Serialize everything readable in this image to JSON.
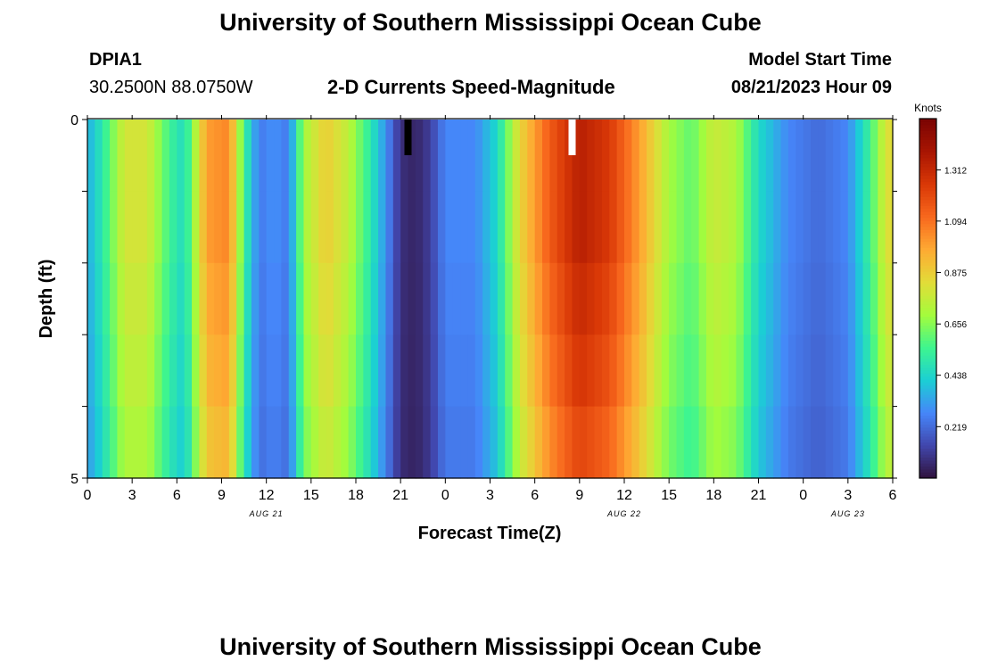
{
  "page": {
    "title": "University of Southern Mississippi Ocean Cube",
    "title_repeat": "University of Southern Mississippi Ocean Cube",
    "station_id": "DPIA1",
    "station_coords": "30.2500N  88.0750W",
    "subtitle": "2-D Currents Speed-Magnitude",
    "model_start_label": "Model Start Time",
    "model_start_value": "08/21/2023 Hour 09"
  },
  "chart_data": {
    "type": "heatmap",
    "title": "2-D Currents Speed-Magnitude",
    "xlabel": "Forecast Time(Z)",
    "ylabel": "Depth (ft)",
    "y_ticks": [
      {
        "label": "0",
        "value": 0
      },
      {
        "label": "5",
        "value": 5
      }
    ],
    "y_range": [
      0,
      5
    ],
    "x_range_hours": [
      0,
      54
    ],
    "x_ticks": [
      {
        "label": "0",
        "hour": 0
      },
      {
        "label": "3",
        "hour": 3
      },
      {
        "label": "6",
        "hour": 6
      },
      {
        "label": "9",
        "hour": 9
      },
      {
        "label": "12",
        "hour": 12
      },
      {
        "label": "15",
        "hour": 15
      },
      {
        "label": "18",
        "hour": 18
      },
      {
        "label": "21",
        "hour": 21
      },
      {
        "label": "0",
        "hour": 24
      },
      {
        "label": "3",
        "hour": 27
      },
      {
        "label": "6",
        "hour": 30
      },
      {
        "label": "9",
        "hour": 33
      },
      {
        "label": "12",
        "hour": 36
      },
      {
        "label": "15",
        "hour": 39
      },
      {
        "label": "18",
        "hour": 42
      },
      {
        "label": "21",
        "hour": 45
      },
      {
        "label": "0",
        "hour": 48
      },
      {
        "label": "3",
        "hour": 51
      },
      {
        "label": "6",
        "hour": 54
      }
    ],
    "date_labels": [
      {
        "label": "AUG 21",
        "hour": 12
      },
      {
        "label": "AUG 22",
        "hour": 36
      },
      {
        "label": "AUG 23",
        "hour": 51
      }
    ],
    "colorbar": {
      "label": "Knots",
      "min": 0.0,
      "max": 1.53,
      "ticks": [
        "0.219",
        "0.438",
        "0.656",
        "0.875",
        "1.094",
        "1.312"
      ],
      "colormap": [
        "#30123b",
        "#4146ac",
        "#4686f9",
        "#1bcfd4",
        "#3ef58f",
        "#a4fc3c",
        "#e2dc38",
        "#feaa33",
        "#f8681d",
        "#d93807",
        "#a81502",
        "#7a0403"
      ]
    },
    "depth_levels": 5,
    "key_points": [
      {
        "hour": 0,
        "speed": 0.35
      },
      {
        "hour": 1,
        "speed": 0.5
      },
      {
        "hour": 2.5,
        "speed": 0.8
      },
      {
        "hour": 4,
        "speed": 0.8
      },
      {
        "hour": 5.5,
        "speed": 0.55
      },
      {
        "hour": 6.5,
        "speed": 0.45
      },
      {
        "hour": 8,
        "speed": 1.0
      },
      {
        "hour": 9.5,
        "speed": 1.05
      },
      {
        "hour": 10.5,
        "speed": 0.55
      },
      {
        "hour": 11.5,
        "speed": 0.25
      },
      {
        "hour": 12.5,
        "speed": 0.3
      },
      {
        "hour": 13.5,
        "speed": 0.25
      },
      {
        "hour": 14.5,
        "speed": 0.7
      },
      {
        "hour": 16,
        "speed": 0.88
      },
      {
        "hour": 17.5,
        "speed": 0.75
      },
      {
        "hour": 19,
        "speed": 0.5
      },
      {
        "hour": 20,
        "speed": 0.3
      },
      {
        "hour": 21,
        "speed": 0.08
      },
      {
        "hour": 22,
        "speed": 0.05
      },
      {
        "hour": 23,
        "speed": 0.12
      },
      {
        "hour": 24,
        "speed": 0.28
      },
      {
        "hour": 26,
        "speed": 0.28
      },
      {
        "hour": 27.5,
        "speed": 0.45
      },
      {
        "hour": 29,
        "speed": 0.85
      },
      {
        "hour": 31,
        "speed": 1.15
      },
      {
        "hour": 33,
        "speed": 1.35
      },
      {
        "hour": 35,
        "speed": 1.25
      },
      {
        "hour": 37,
        "speed": 1.0
      },
      {
        "hour": 39,
        "speed": 0.7
      },
      {
        "hour": 40.5,
        "speed": 0.6
      },
      {
        "hour": 42,
        "speed": 0.78
      },
      {
        "hour": 43.5,
        "speed": 0.72
      },
      {
        "hour": 45,
        "speed": 0.45
      },
      {
        "hour": 47,
        "speed": 0.28
      },
      {
        "hour": 49,
        "speed": 0.22
      },
      {
        "hour": 51,
        "speed": 0.28
      },
      {
        "hour": 52.5,
        "speed": 0.55
      },
      {
        "hour": 53.5,
        "speed": 0.8
      },
      {
        "hour": 54,
        "speed": 0.85
      }
    ],
    "markers": [
      {
        "name": "low-speed-marker",
        "hour": 21.5,
        "color": "#000000"
      },
      {
        "name": "high-speed-marker",
        "hour": 32.5,
        "color": "#ffffff"
      }
    ]
  }
}
